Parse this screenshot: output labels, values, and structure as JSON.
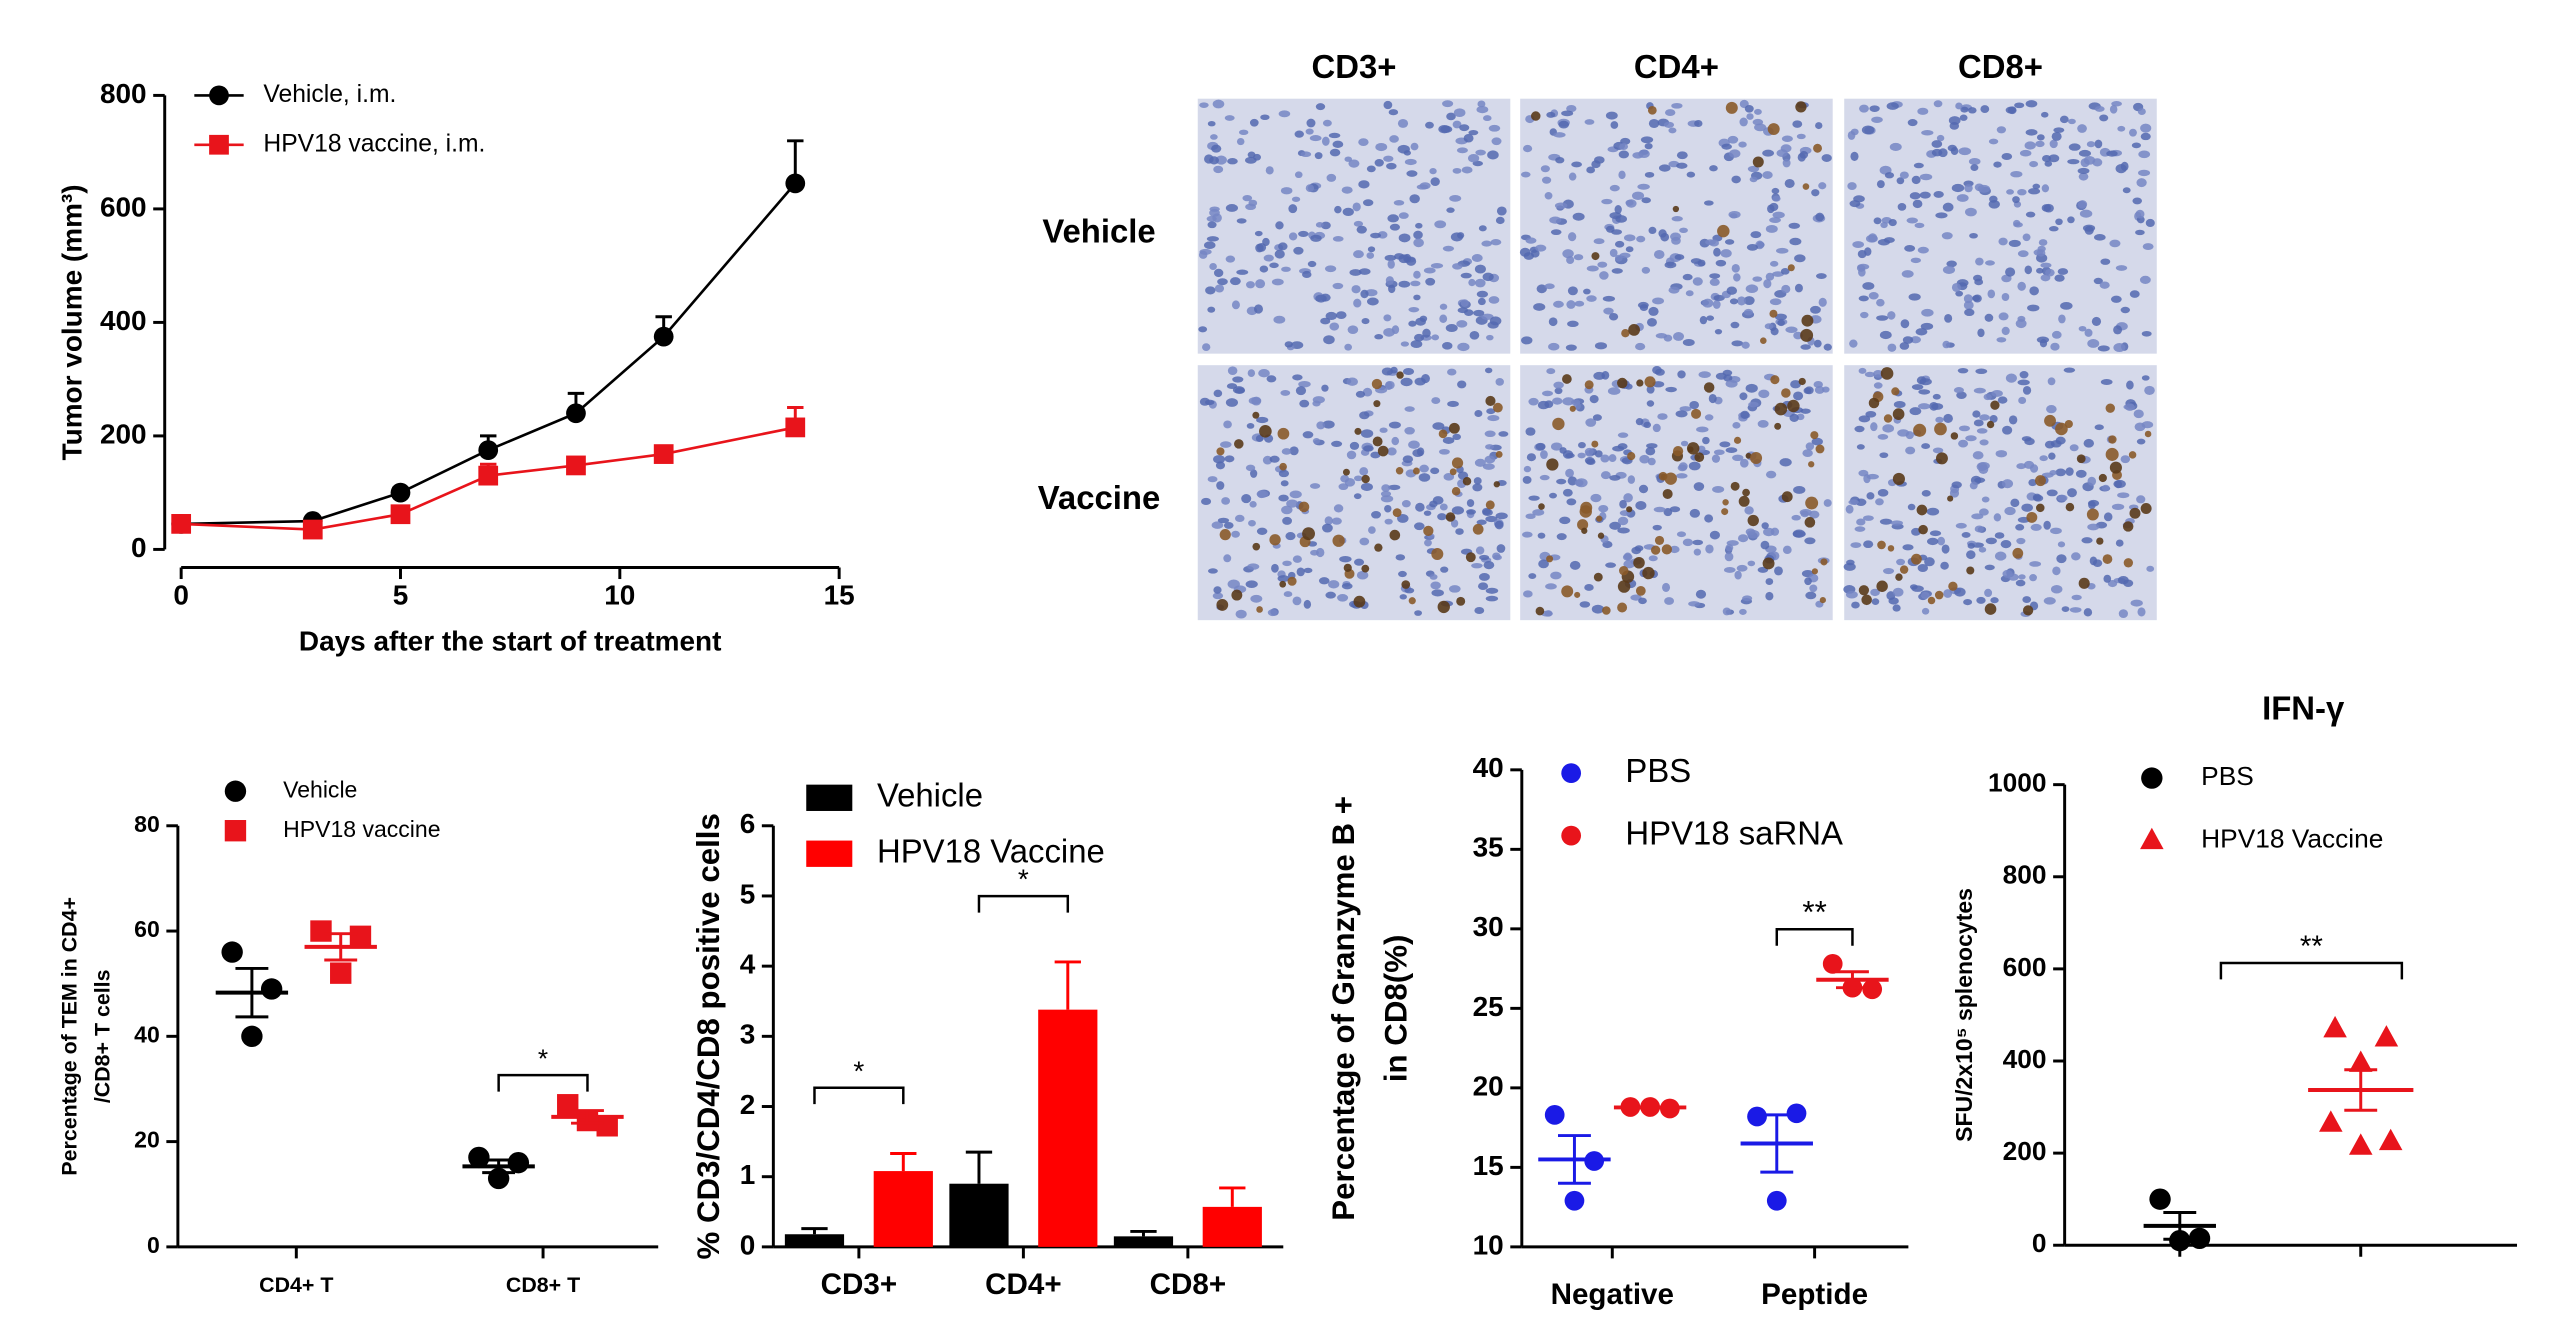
{
  "chart_data": [
    {
      "type": "line",
      "y_label": "Tumor volume (mm³)",
      "x_label": "Days after the start of treatment",
      "x": [
        0,
        3,
        5,
        7,
        9,
        11,
        14
      ],
      "xlim": [
        0,
        15
      ],
      "xticks": [
        0,
        5,
        10,
        15
      ],
      "ylim": [
        0,
        800
      ],
      "yticks": [
        0,
        200,
        400,
        600,
        800
      ],
      "series": [
        {
          "name": "Vehicle, i.m.",
          "color": "#000000",
          "marker": "circle",
          "values": [
            45,
            50,
            100,
            175,
            240,
            375,
            645
          ],
          "errors": [
            5,
            5,
            8,
            25,
            35,
            35,
            75
          ]
        },
        {
          "name": "HPV18 vaccine, i.m.",
          "color": "#e8141b",
          "marker": "square",
          "values": [
            45,
            35,
            62,
            130,
            148,
            168,
            215
          ],
          "errors": [
            5,
            5,
            8,
            20,
            10,
            10,
            35
          ]
        }
      ]
    },
    {
      "type": "dot",
      "y_label": [
        "Percentage of TEM in CD4+",
        "/CD8+ T cells"
      ],
      "categories": [
        "CD4+ T",
        "CD8+ T"
      ],
      "ylim": [
        0,
        80
      ],
      "yticks": [
        0,
        20,
        40,
        60,
        80
      ],
      "series": [
        {
          "name": "Vehicle",
          "color": "#000000",
          "marker": "circle",
          "points": [
            [
              56,
              49,
              40
            ],
            [
              17,
              16,
              13
            ]
          ],
          "values": [
            48.3,
            15.3
          ],
          "errors": [
            4.6,
            1.2
          ]
        },
        {
          "name": "HPV18 vaccine",
          "color": "#e8141b",
          "marker": "square",
          "points": [
            [
              60,
              59,
              52
            ],
            [
              27,
              23,
              24
            ]
          ],
          "values": [
            57,
            24.7
          ],
          "errors": [
            2.5,
            1.2
          ]
        }
      ],
      "significance": [
        null,
        "*"
      ]
    },
    {
      "type": "bar",
      "y_label": "% CD3/CD4/CD8 positive cells",
      "categories": [
        "CD3+",
        "CD4+",
        "CD8+"
      ],
      "ylim": [
        0,
        6
      ],
      "yticks": [
        0,
        1,
        2,
        3,
        4,
        5,
        6
      ],
      "series": [
        {
          "name": "Vehicle",
          "color": "#000000",
          "values": [
            0.18,
            0.9,
            0.15
          ],
          "errors": [
            0.08,
            0.45,
            0.07
          ]
        },
        {
          "name": "HPV18 Vaccine",
          "color": "#ff0000",
          "values": [
            1.08,
            3.38,
            0.57
          ],
          "errors": [
            0.25,
            0.68,
            0.27
          ]
        }
      ],
      "significance": [
        "*",
        "*",
        null
      ]
    },
    {
      "type": "dot",
      "y_label": [
        "Percentage of Granzyme B +",
        "in CD8(%)"
      ],
      "categories": [
        "Negative",
        "Peptide"
      ],
      "ylim": [
        10,
        40
      ],
      "yticks": [
        10,
        15,
        20,
        25,
        30,
        35,
        40
      ],
      "series": [
        {
          "name": "PBS",
          "color": "#1a1ae6",
          "marker": "circle",
          "points": [
            [
              18.3,
              15.4,
              12.9
            ],
            [
              18.2,
              18.4,
              12.9
            ]
          ],
          "values": [
            15.5,
            16.5
          ],
          "errors": [
            1.5,
            1.8
          ]
        },
        {
          "name": "HPV18 saRNA",
          "color": "#e8141b",
          "marker": "circle",
          "points": [
            [
              18.8,
              18.7,
              18.8
            ],
            [
              27.8,
              26.2,
              26.3
            ]
          ],
          "values": [
            18.77,
            26.8
          ],
          "errors": [
            0.03,
            0.5
          ]
        }
      ],
      "significance": [
        null,
        "**"
      ]
    },
    {
      "type": "dot",
      "title": "IFN-γ",
      "y_label": [
        "SFU/2x10⁵ splenocytes"
      ],
      "categories": [
        null,
        null
      ],
      "ylim": [
        0,
        1000
      ],
      "yticks": [
        0,
        200,
        400,
        600,
        800,
        1000
      ],
      "series": [
        {
          "name": "PBS",
          "color": "#000000",
          "marker": "circle",
          "points": [
            [
              100,
              15,
              10
            ],
            null
          ],
          "values": [
            42,
            null
          ],
          "errors": [
            29,
            null
          ]
        },
        {
          "name": "HPV18 Vaccine",
          "color": "#e8141b",
          "marker": "triangle",
          "points": [
            null,
            [
              470,
              450,
              395,
              265,
              225,
              215
            ]
          ],
          "values": [
            null,
            337
          ],
          "errors": [
            null,
            44
          ]
        }
      ],
      "significance": "**"
    }
  ],
  "micrographs": {
    "columns": [
      "CD3+",
      "CD4+",
      "CD8+"
    ],
    "rows": [
      "Vehicle",
      "Vaccine"
    ]
  }
}
